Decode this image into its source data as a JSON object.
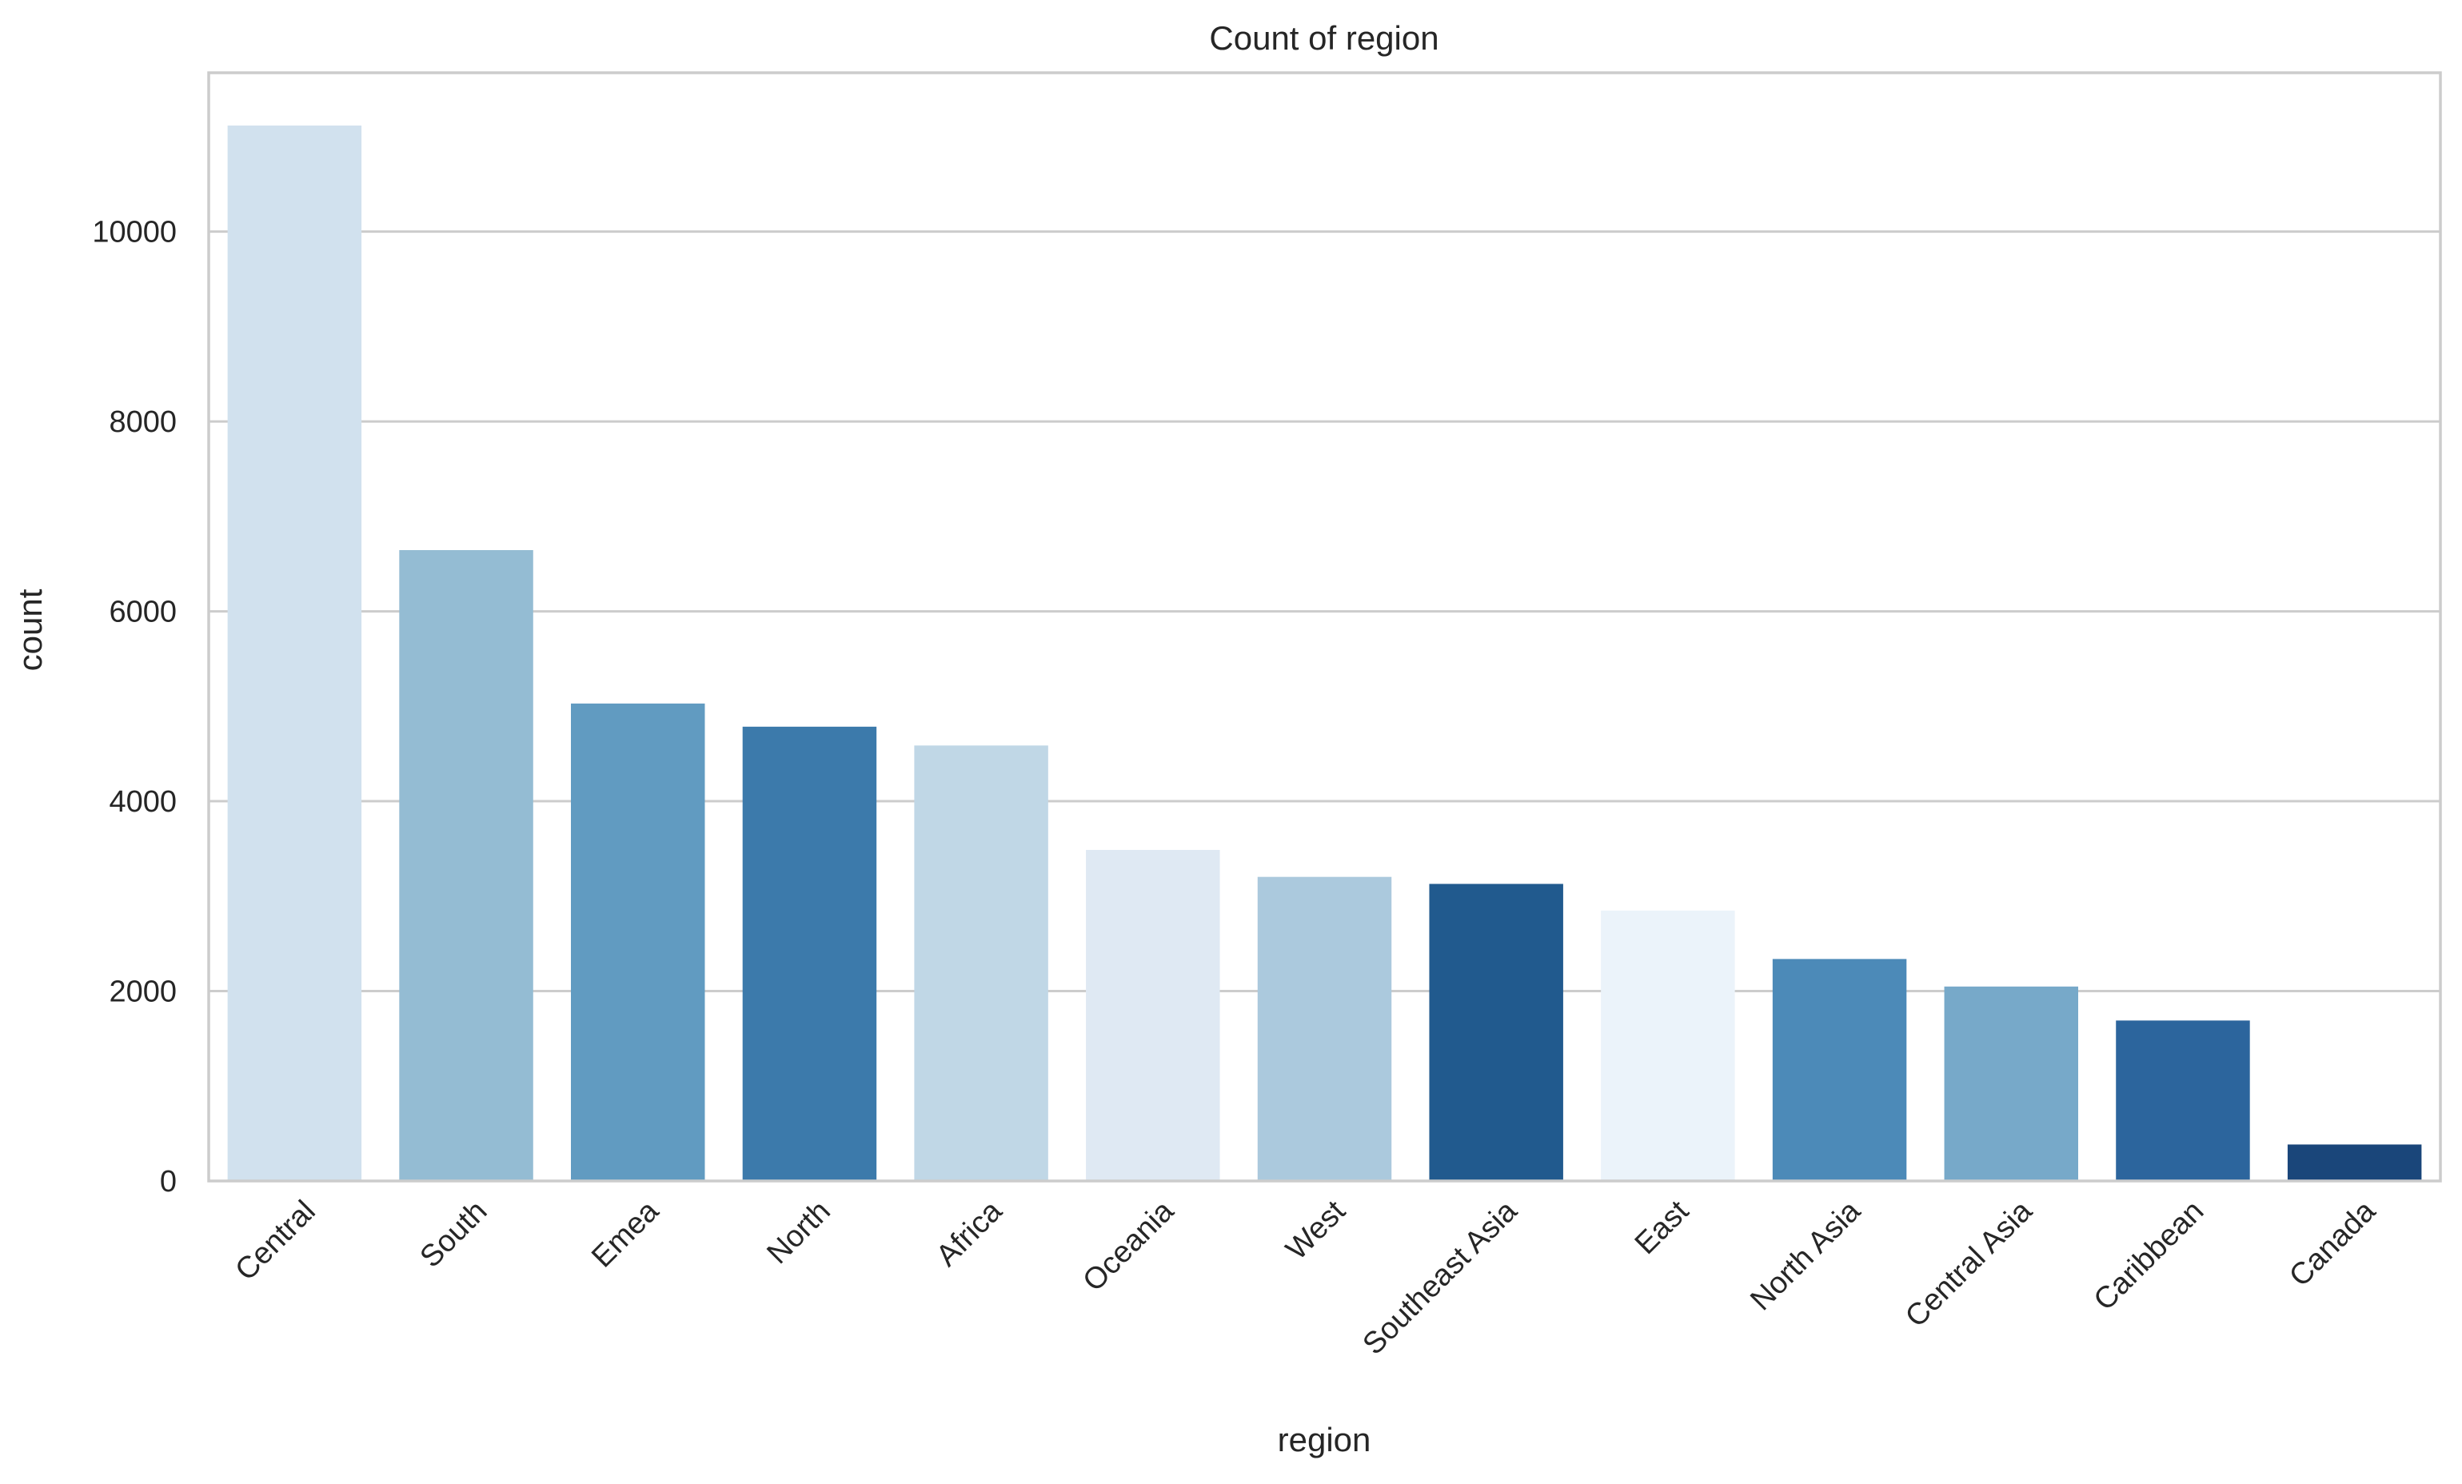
{
  "chart_data": {
    "type": "bar",
    "title": "Count of region",
    "xlabel": "region",
    "ylabel": "count",
    "categories": [
      "Central",
      "South",
      "Emea",
      "North",
      "Africa",
      "Oceania",
      "West",
      "Southeast Asia",
      "East",
      "North Asia",
      "Central Asia",
      "Caribbean",
      "Canada"
    ],
    "values": [
      11117,
      6645,
      5029,
      4785,
      4587,
      3487,
      3203,
      3129,
      2848,
      2338,
      2048,
      1690,
      384
    ],
    "colors": [
      "#d1e1ee",
      "#94bcd3",
      "#619bc1",
      "#3c7aab",
      "#c0d7e6",
      "#dfe9f3",
      "#abc9dd",
      "#215a8e",
      "#ebf3fa",
      "#4c8ab8",
      "#77a9c9",
      "#2c659d",
      "#1a467a"
    ],
    "ylim": [
      0,
      11673
    ],
    "yticks": [
      0,
      2000,
      4000,
      6000,
      8000,
      10000
    ],
    "grid": true,
    "legend": "none"
  }
}
